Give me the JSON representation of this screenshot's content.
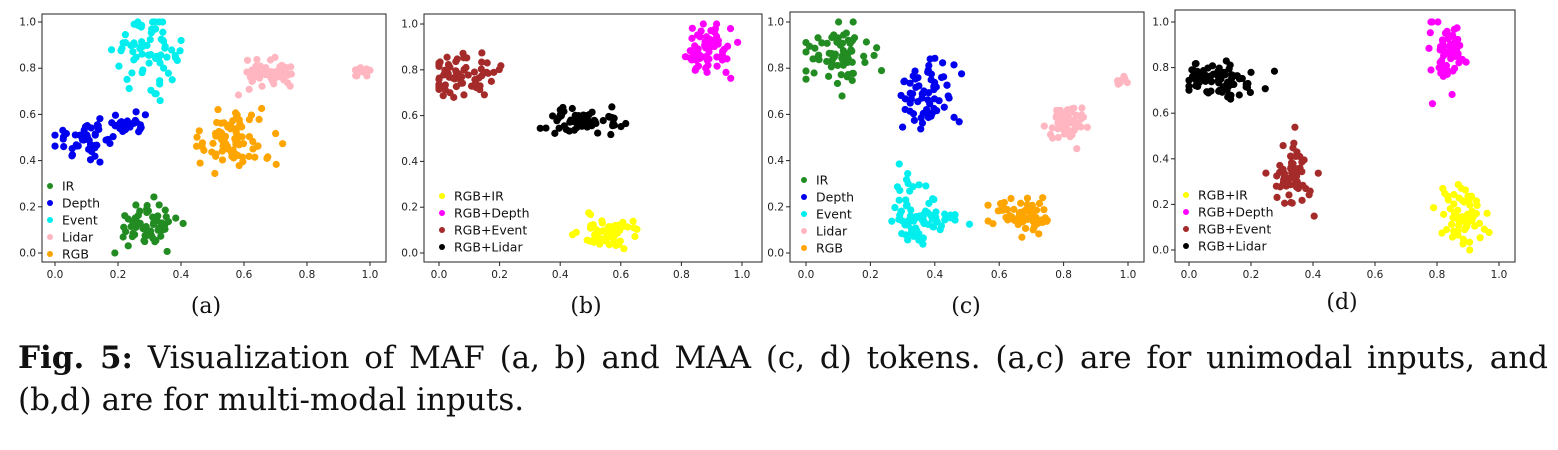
{
  "caption": {
    "prefix": "Fig. 5:",
    "text": " Visualization of MAF (a, b) and MAA (c, d) tokens. (a,c) are for unimodal inputs, and (b,d) are for multi-modal inputs."
  },
  "colors": {
    "IR": "#228b22",
    "Depth": "#0000ee",
    "Event": "#00eeee",
    "Lidar": "#ffb6c1",
    "RGB": "#ffa500",
    "RGB+IR": "#ffff00",
    "RGB+Depth": "#ff00ff",
    "RGB+Event": "#a52a2a",
    "RGB+Lidar": "#000000"
  },
  "chart_data": [
    {
      "type": "scatter",
      "label": "(a)",
      "xlim": [
        0,
        1
      ],
      "ylim": [
        0,
        1
      ],
      "xticks": [
        "0.0",
        "0.2",
        "0.4",
        "0.6",
        "0.8",
        "1.0"
      ],
      "yticks": [
        "0.0",
        "0.2",
        "0.4",
        "0.6",
        "0.8",
        "1.0"
      ],
      "legend": "bottom-left",
      "series": [
        {
          "name": "IR",
          "clusters": [
            {
              "cx": 0.29,
              "cy": 0.12,
              "sx": 0.05,
              "sy": 0.05,
              "n": 60
            }
          ]
        },
        {
          "name": "Depth",
          "clusters": [
            {
              "cx": 0.11,
              "cy": 0.5,
              "sx": 0.06,
              "sy": 0.04,
              "n": 50
            },
            {
              "cx": 0.24,
              "cy": 0.55,
              "sx": 0.03,
              "sy": 0.03,
              "n": 22
            }
          ]
        },
        {
          "name": "Event",
          "clusters": [
            {
              "cx": 0.29,
              "cy": 0.88,
              "sx": 0.05,
              "sy": 0.07,
              "n": 70
            }
          ]
        },
        {
          "name": "Lidar",
          "clusters": [
            {
              "cx": 0.68,
              "cy": 0.77,
              "sx": 0.05,
              "sy": 0.03,
              "n": 60
            },
            {
              "cx": 0.98,
              "cy": 0.78,
              "sx": 0.015,
              "sy": 0.01,
              "n": 12
            }
          ]
        },
        {
          "name": "RGB",
          "clusters": [
            {
              "cx": 0.57,
              "cy": 0.5,
              "sx": 0.07,
              "sy": 0.06,
              "n": 80
            }
          ]
        }
      ]
    },
    {
      "type": "scatter",
      "label": "(b)",
      "xlim": [
        0,
        1
      ],
      "ylim": [
        0,
        1
      ],
      "xticks": [
        "0.0",
        "0.2",
        "0.4",
        "0.6",
        "0.8",
        "1.0"
      ],
      "yticks": [
        "0.0",
        "0.2",
        "0.4",
        "0.6",
        "0.8",
        "1.0"
      ],
      "legend": "bottom-left",
      "series": [
        {
          "name": "RGB+IR",
          "clusters": [
            {
              "cx": 0.56,
              "cy": 0.09,
              "sx": 0.05,
              "sy": 0.04,
              "n": 60
            }
          ]
        },
        {
          "name": "RGB+Depth",
          "clusters": [
            {
              "cx": 0.89,
              "cy": 0.88,
              "sx": 0.04,
              "sy": 0.06,
              "n": 60
            }
          ]
        },
        {
          "name": "RGB+Event",
          "clusters": [
            {
              "cx": 0.09,
              "cy": 0.77,
              "sx": 0.06,
              "sy": 0.05,
              "n": 70
            }
          ]
        },
        {
          "name": "RGB+Lidar",
          "clusters": [
            {
              "cx": 0.47,
              "cy": 0.58,
              "sx": 0.06,
              "sy": 0.03,
              "n": 60
            }
          ]
        }
      ]
    },
    {
      "type": "scatter",
      "label": "(c)",
      "xlim": [
        0,
        1
      ],
      "ylim": [
        0,
        1
      ],
      "xticks": [
        "0.0",
        "0.2",
        "0.4",
        "0.6",
        "0.8",
        "1.0"
      ],
      "yticks": [
        "0.0",
        "0.2",
        "0.4",
        "0.6",
        "0.8",
        "1.0"
      ],
      "legend": "bottom-left",
      "series": [
        {
          "name": "IR",
          "clusters": [
            {
              "cx": 0.09,
              "cy": 0.85,
              "sx": 0.05,
              "sy": 0.06,
              "n": 70
            }
          ]
        },
        {
          "name": "Depth",
          "clusters": [
            {
              "cx": 0.37,
              "cy": 0.68,
              "sx": 0.04,
              "sy": 0.08,
              "n": 65
            }
          ]
        },
        {
          "name": "Event",
          "clusters": [
            {
              "cx": 0.36,
              "cy": 0.14,
              "sx": 0.05,
              "sy": 0.05,
              "n": 70
            },
            {
              "cx": 0.31,
              "cy": 0.28,
              "sx": 0.02,
              "sy": 0.05,
              "n": 12
            }
          ]
        },
        {
          "name": "Lidar",
          "clusters": [
            {
              "cx": 0.81,
              "cy": 0.56,
              "sx": 0.03,
              "sy": 0.05,
              "n": 50
            },
            {
              "cx": 0.98,
              "cy": 0.74,
              "sx": 0.01,
              "sy": 0.01,
              "n": 10
            }
          ]
        },
        {
          "name": "RGB",
          "clusters": [
            {
              "cx": 0.67,
              "cy": 0.16,
              "sx": 0.05,
              "sy": 0.04,
              "n": 70
            }
          ]
        }
      ]
    },
    {
      "type": "scatter",
      "label": "(d)",
      "xlim": [
        0,
        1
      ],
      "ylim": [
        0,
        1
      ],
      "xticks": [
        "0.0",
        "0.2",
        "0.4",
        "0.6",
        "0.8",
        "1.0"
      ],
      "yticks": [
        "0.0",
        "0.2",
        "0.4",
        "0.6",
        "0.8",
        "1.0"
      ],
      "legend": "bottom-left",
      "series": [
        {
          "name": "RGB+IR",
          "clusters": [
            {
              "cx": 0.88,
              "cy": 0.14,
              "sx": 0.04,
              "sy": 0.07,
              "n": 60
            }
          ]
        },
        {
          "name": "RGB+Depth",
          "clusters": [
            {
              "cx": 0.84,
              "cy": 0.86,
              "sx": 0.03,
              "sy": 0.07,
              "n": 60
            }
          ]
        },
        {
          "name": "RGB+Event",
          "clusters": [
            {
              "cx": 0.33,
              "cy": 0.34,
              "sx": 0.03,
              "sy": 0.08,
              "n": 60
            }
          ]
        },
        {
          "name": "RGB+Lidar",
          "clusters": [
            {
              "cx": 0.1,
              "cy": 0.75,
              "sx": 0.06,
              "sy": 0.04,
              "n": 80
            }
          ]
        }
      ]
    }
  ]
}
